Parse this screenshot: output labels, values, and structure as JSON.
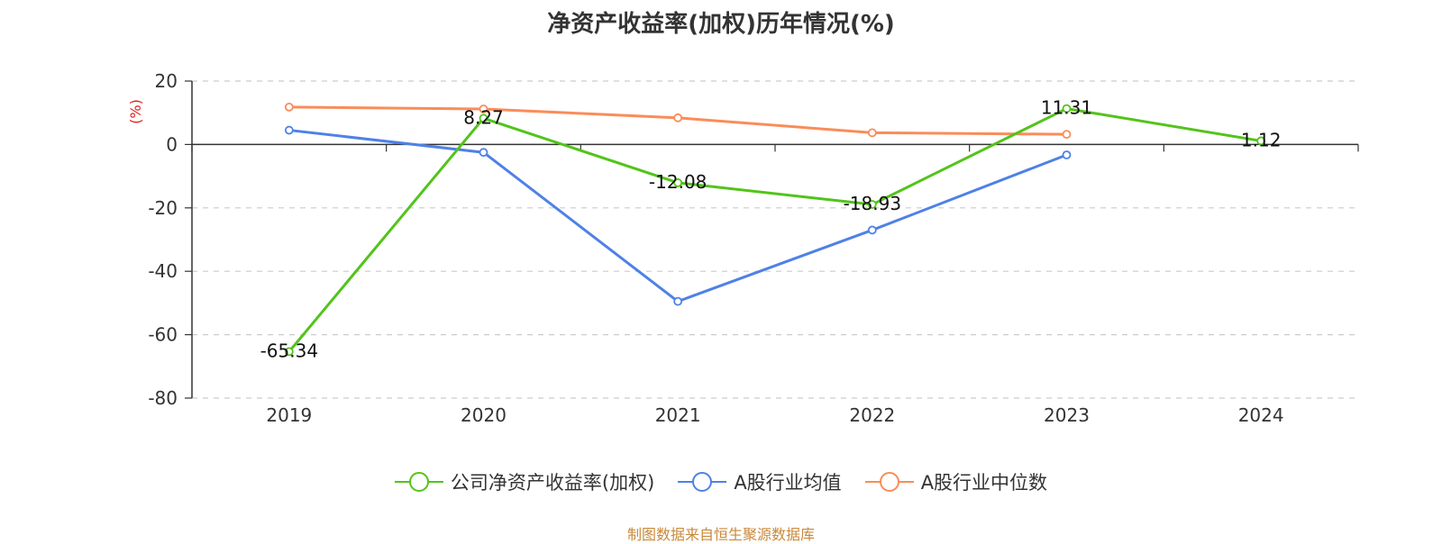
{
  "chart_data": {
    "type": "line",
    "title": "净资产收益率(加权)历年情况(%)",
    "ylabel": "(%)",
    "categories": [
      "2019",
      "2020",
      "2021",
      "2022",
      "2023",
      "2024"
    ],
    "ylim": [
      -80,
      20
    ],
    "yticks": [
      20,
      0,
      -20,
      -40,
      -60,
      -80
    ],
    "grid": true,
    "legend_position": "bottom",
    "series": [
      {
        "name": "公司净资产收益率(加权)",
        "color": "#52c41a",
        "values": [
          -65.34,
          8.27,
          -12.08,
          -18.93,
          11.31,
          1.12
        ],
        "labels": [
          "-65.34",
          "8.27",
          "-12.08",
          "-18.93",
          "11.31",
          "1.12"
        ]
      },
      {
        "name": "A股行业均值",
        "color": "#4f81e6",
        "values": [
          4.5,
          -2.5,
          -49.5,
          -27.0,
          -3.3,
          null
        ]
      },
      {
        "name": "A股行业中位数",
        "color": "#fa8c59",
        "values": [
          11.8,
          11.2,
          8.4,
          3.7,
          3.2,
          null
        ]
      }
    ]
  },
  "source": "制图数据来自恒生聚源数据库"
}
